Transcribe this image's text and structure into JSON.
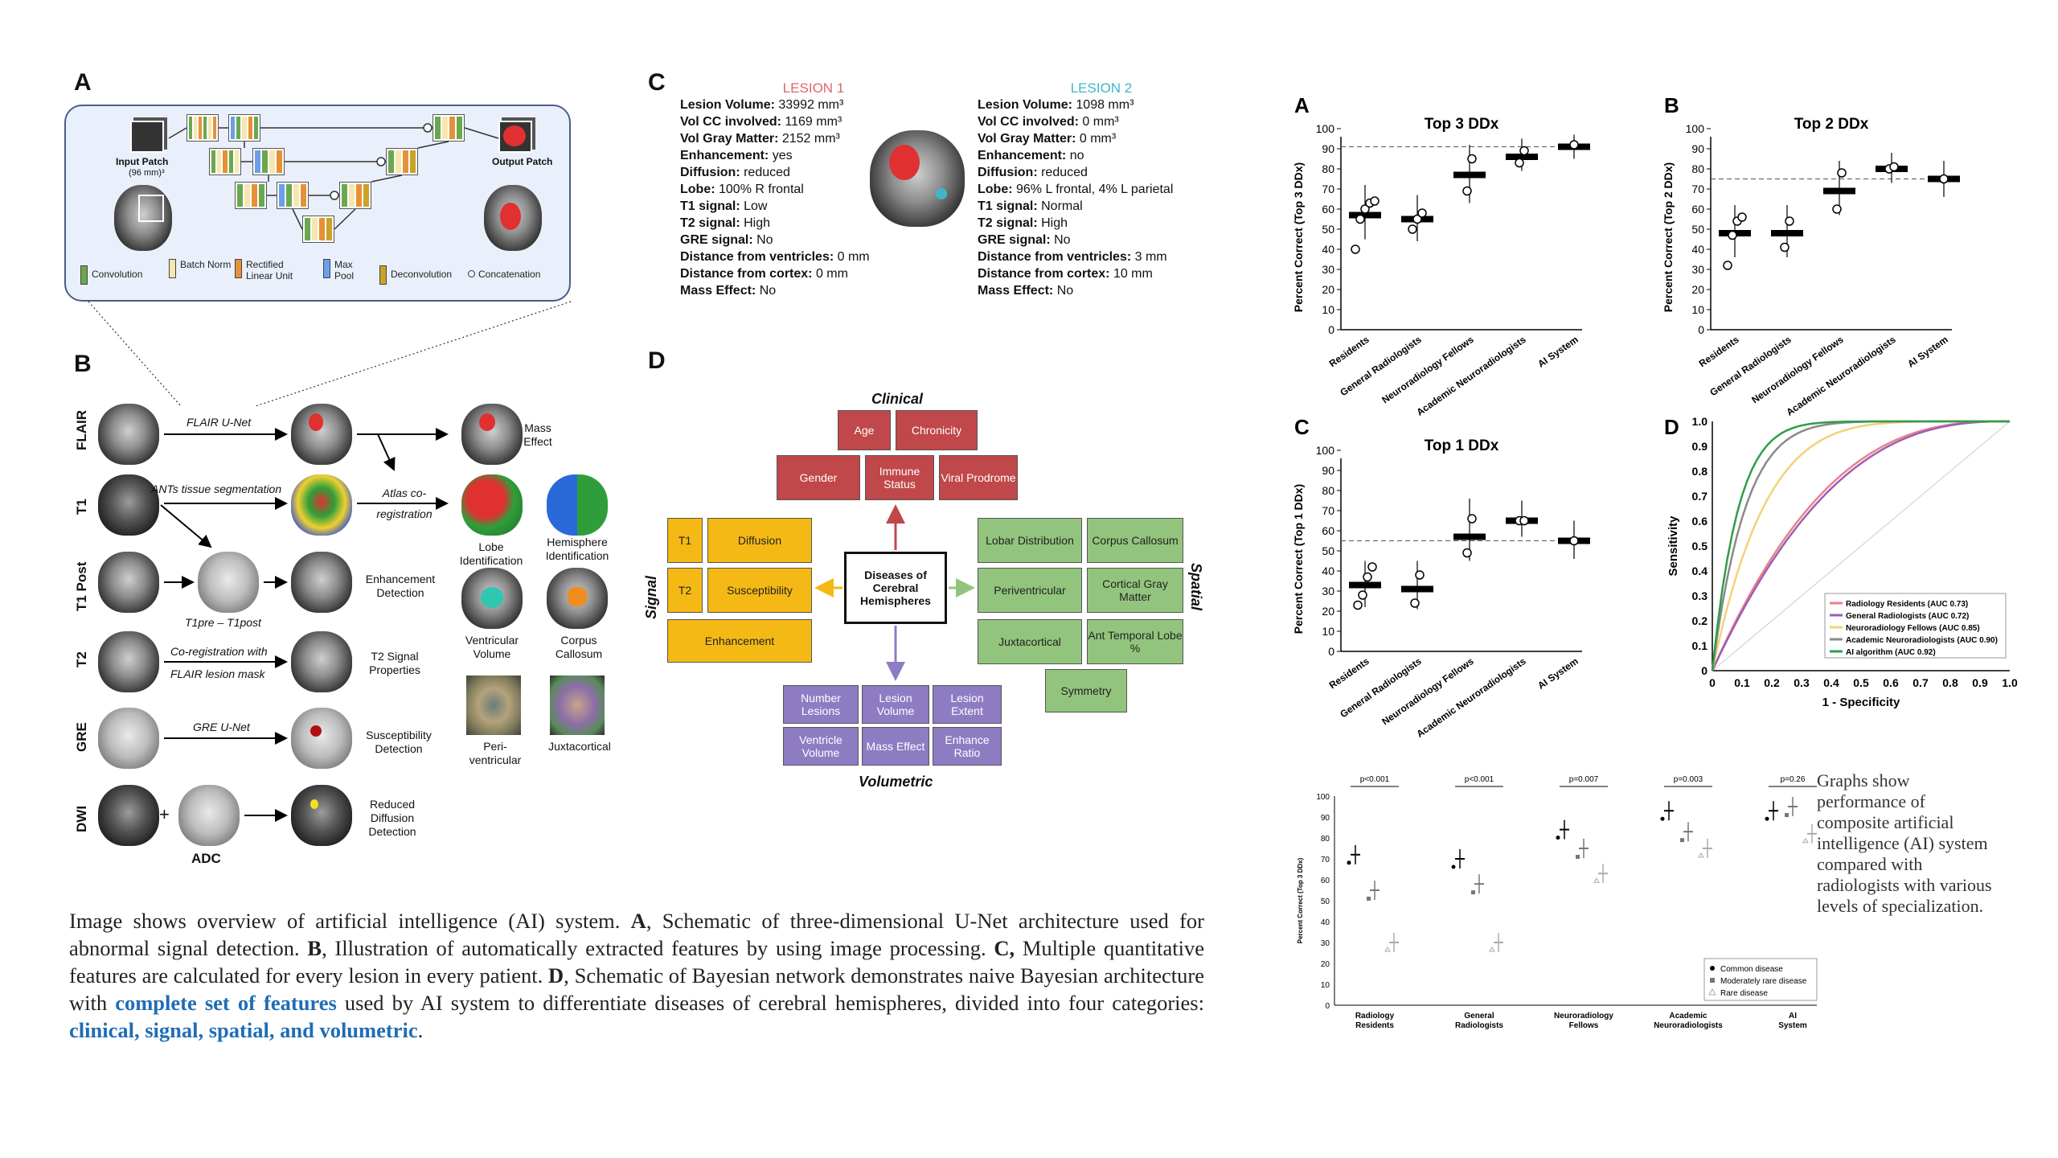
{
  "caption": {
    "text1": "Image shows overview of artificial intelligence (AI) system. ",
    "a_label": "A",
    "text2": ", Schematic of three-dimensional U-Net architecture used for abnormal signal detection. ",
    "b_label": "B",
    "text3": ", Illustration of automatically extracted features by using image processing. ",
    "c_label": "C,",
    "text4": " Multiple quantitative features are calculated for every lesion in every patient. ",
    "d_label": "D",
    "text5": ", Schematic of Bayesian network demonstrates naive Bayesian architecture with ",
    "highlight1": "complete set of features",
    "text6": " used by AI system to differentiate diseases of cerebral hemispheres, divided into four categories: ",
    "highlight2": "clinical, signal, spatial, and volumetric",
    "text7": "."
  },
  "side_caption": "Graphs show performance of composite artificial intelligence (AI) system compared with radiologists with various levels of specialization.",
  "panel_a": {
    "label": "A",
    "input_patch": "Input Patch",
    "input_size": "(96 mm)³",
    "output_patch": "Output Patch",
    "legend": [
      "Convolution",
      "Batch Norm",
      "Rectified Linear Unit",
      "Max Pool",
      "Deconvolution",
      "Concatenation"
    ],
    "colors": {
      "convolution": "#6aa84f",
      "batch_norm": "#f6e7b0",
      "relu": "#e69138",
      "max_pool": "#6d9eeb",
      "deconvolution": "#c9a227"
    }
  },
  "panel_b": {
    "label": "B",
    "rows": [
      "FLAIR",
      "T1",
      "T1 Post",
      "T2",
      "GRE",
      "DWI"
    ],
    "arrows": [
      "FLAIR U-Net",
      "ANTs tissue segmentation",
      "Atlas co-registration",
      "T1pre – T1post",
      "Co-registration with",
      "FLAIR lesion mask",
      "GRE U-Net"
    ],
    "plus": "+",
    "adc": "ADC",
    "features": [
      "Mass Effect",
      "Lobe Identification",
      "Hemisphere Identification",
      "Enhancement Detection",
      "Ventricular Volume",
      "Corpus Callosum",
      "T2 Signal Properties",
      "Peri-ventricular",
      "Juxtacortical",
      "Susceptibility Detection",
      "Reduced Diffusion Detection"
    ]
  },
  "panel_c": {
    "label": "C",
    "lesion1": {
      "title": "LESION 1",
      "color": "#e06666",
      "rows": [
        [
          "Lesion Volume:",
          "33992 mm³"
        ],
        [
          "Vol CC involved:",
          "1169 mm³"
        ],
        [
          "Vol Gray Matter:",
          "2152 mm³"
        ],
        [
          "Enhancement:",
          "yes"
        ],
        [
          "Diffusion:",
          "reduced"
        ],
        [
          "Lobe:",
          "100% R frontal"
        ],
        [
          "T1 signal:",
          "Low"
        ],
        [
          "T2 signal:",
          "High"
        ],
        [
          "GRE signal:",
          "No"
        ],
        [
          "Distance from ventricles:",
          "0 mm"
        ],
        [
          "Distance from cortex:",
          "0 mm"
        ],
        [
          "Mass Effect:",
          "No"
        ]
      ]
    },
    "lesion2": {
      "title": "LESION 2",
      "color": "#3fb5c9",
      "rows": [
        [
          "Lesion Volume:",
          "1098 mm³"
        ],
        [
          "Vol CC involved:",
          "0 mm³"
        ],
        [
          "Vol Gray Matter:",
          "0 mm³"
        ],
        [
          "Enhancement:",
          "no"
        ],
        [
          "Diffusion:",
          "reduced"
        ],
        [
          "Lobe:",
          "96% L frontal, 4% L parietal"
        ],
        [
          "T1 signal:",
          "Normal"
        ],
        [
          "T2 signal:",
          "High"
        ],
        [
          "GRE signal:",
          "No"
        ],
        [
          "Distance from ventricles:",
          "3 mm"
        ],
        [
          "Distance from cortex:",
          "10 mm"
        ],
        [
          "Mass Effect:",
          "No"
        ]
      ]
    }
  },
  "panel_d": {
    "label": "D",
    "center": "Diseases of Cerebral Hemispheres",
    "categories": {
      "clinical": "Clinical",
      "signal": "Signal",
      "spatial": "Spatial",
      "volumetric": "Volumetric"
    },
    "clinical": [
      "Age",
      "Chronicity",
      "Gender",
      "Immune Status",
      "Viral Prodrome"
    ],
    "signal": [
      "T1",
      "Diffusion",
      "T2",
      "Susceptibility",
      "Enhancement"
    ],
    "spatial": [
      "Lobar Distribution",
      "Corpus Callosum",
      "Periventricular",
      "Cortical Gray Matter",
      "Juxtacortical",
      "Ant Temporal Lobe %",
      "Symmetry"
    ],
    "volumetric": [
      "Number Lesions",
      "Lesion Volume",
      "Lesion Extent",
      "Ventricle Volume",
      "Mass Effect",
      "Enhance Ratio"
    ],
    "colors": {
      "clinical": "#c0474a",
      "signal": "#f5b915",
      "spatial": "#93c47d",
      "volumetric": "#8e7cc3"
    }
  },
  "chart_data": [
    {
      "id": "A",
      "type": "scatter",
      "title": "Top 3 DDx",
      "ylabel": "Percent Correct (Top 3 DDx)",
      "categories": [
        "Residents",
        "General Radiologists",
        "Neuroradiology Fellows",
        "Academic Neuroradiologists",
        "AI System"
      ],
      "ylim": [
        0,
        100
      ],
      "yticks": [
        0,
        10,
        20,
        30,
        40,
        50,
        60,
        70,
        80,
        90,
        100
      ],
      "reference_line": 91,
      "means": [
        57,
        55,
        77,
        86,
        91
      ],
      "errors": [
        [
          45,
          72
        ],
        [
          44,
          67
        ],
        [
          63,
          92
        ],
        [
          79,
          95
        ],
        [
          85,
          97
        ]
      ],
      "individuals": [
        [
          40,
          55,
          60,
          63,
          64
        ],
        [
          50,
          55,
          58
        ],
        [
          69,
          85
        ],
        [
          83,
          89
        ],
        [
          92
        ]
      ]
    },
    {
      "id": "B",
      "type": "scatter",
      "title": "Top 2 DDx",
      "ylabel": "Percent Correct (Top 2 DDx)",
      "categories": [
        "Residents",
        "General Radiologists",
        "Neuroradiology Fellows",
        "Academic Neuroradiologists",
        "AI System"
      ],
      "ylim": [
        0,
        100
      ],
      "yticks": [
        0,
        10,
        20,
        30,
        40,
        50,
        60,
        70,
        80,
        90,
        100
      ],
      "reference_line": 75,
      "means": [
        48,
        48,
        69,
        80,
        75
      ],
      "errors": [
        [
          36,
          62
        ],
        [
          36,
          62
        ],
        [
          57,
          84
        ],
        [
          73,
          88
        ],
        [
          66,
          84
        ]
      ],
      "individuals": [
        [
          32,
          47,
          54,
          56
        ],
        [
          41,
          54
        ],
        [
          60,
          78
        ],
        [
          80,
          81
        ],
        [
          75
        ]
      ]
    },
    {
      "id": "C",
      "type": "scatter",
      "title": "Top 1 DDx",
      "ylabel": "Percent Correct (Top 1 DDx)",
      "categories": [
        "Residents",
        "General Radiologists",
        "Neuroradiology Fellows",
        "Academic Neuroradiologists",
        "AI System"
      ],
      "ylim": [
        0,
        100
      ],
      "yticks": [
        0,
        10,
        20,
        30,
        40,
        50,
        60,
        70,
        80,
        90,
        100
      ],
      "reference_line": 55,
      "means": [
        33,
        31,
        57,
        65,
        55
      ],
      "errors": [
        [
          22,
          45
        ],
        [
          21,
          45
        ],
        [
          45,
          76
        ],
        [
          57,
          75
        ],
        [
          46,
          65
        ]
      ],
      "individuals": [
        [
          23,
          28,
          37,
          42
        ],
        [
          24,
          38
        ],
        [
          49,
          66
        ],
        [
          65,
          65
        ],
        [
          55
        ]
      ]
    },
    {
      "id": "D",
      "type": "line",
      "title": "",
      "xlabel": "1 - Specificity",
      "ylabel": "Sensitivity",
      "xlim": [
        0,
        1
      ],
      "ylim": [
        0,
        1
      ],
      "ticks": [
        "0",
        "0.1",
        "0.2",
        "0.3",
        "0.4",
        "0.5",
        "0.6",
        "0.7",
        "0.8",
        "0.9",
        "1.0"
      ],
      "legend_position": "bottom-right",
      "series": [
        {
          "name": "Radiology Residents (AUC 0.73)",
          "color": "#e8828a",
          "auc": 0.73
        },
        {
          "name": "General Radiologists (AUC 0.72)",
          "color": "#9c5fb5",
          "auc": 0.72
        },
        {
          "name": "Neuroradiology Fellows (AUC 0.85)",
          "color": "#f2d27a",
          "auc": 0.85
        },
        {
          "name": "Academic Neuroradiologists (AUC 0.90)",
          "color": "#8a8a8a",
          "auc": 0.9
        },
        {
          "name": "AI algorithm (AUC 0.92)",
          "color": "#2e9e4a",
          "auc": 0.92
        }
      ]
    },
    {
      "id": "E",
      "type": "scatter",
      "title": "",
      "ylabel": "Percent Correct (Top 3 DDx)",
      "categories": [
        "Radiology Residents",
        "General Radiologists",
        "Neuroradiology Fellows",
        "Academic Neuroradiologists",
        "AI System"
      ],
      "pvalues": [
        "p<0.001",
        "p<0.001",
        "p=0.007",
        "p=0.003",
        "p=0.26"
      ],
      "ylim": [
        0,
        100
      ],
      "yticks": [
        0,
        10,
        20,
        30,
        40,
        50,
        60,
        70,
        80,
        90,
        100
      ],
      "legend_position": "bottom-right",
      "series": [
        {
          "name": "Common disease",
          "marker": "dot",
          "means": [
            72,
            70,
            84,
            93,
            93
          ]
        },
        {
          "name": "Moderately rare disease",
          "marker": "square",
          "means": [
            55,
            58,
            75,
            83,
            95
          ]
        },
        {
          "name": "Rare disease",
          "marker": "triangle",
          "means": [
            30,
            30,
            63,
            75,
            82
          ]
        }
      ]
    }
  ]
}
